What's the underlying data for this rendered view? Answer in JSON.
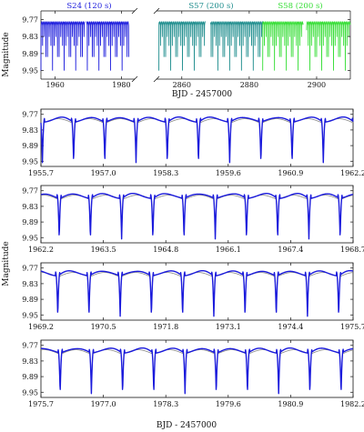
{
  "chart_data": [
    {
      "type": "line",
      "panel": "overview",
      "xlabel": "BJD - 2457000",
      "ylabel": "Magnitude",
      "ylim": [
        9.98,
        9.74
      ],
      "yticks": [
        "9.77",
        "9.83",
        "9.89",
        "9.95"
      ],
      "broken_x_axis": true,
      "segments": [
        {
          "xlim": [
            1955.7,
            1984.0
          ],
          "xticks": [
            "1960",
            "1980"
          ]
        },
        {
          "xlim": [
            2852.5,
            2910.0
          ],
          "xticks": [
            "2860",
            "2880",
            "2900"
          ]
        }
      ],
      "series": [
        {
          "name": "S24 (120 s)",
          "color": "#1a1adc",
          "x_range": [
            1955.7,
            1982.2
          ],
          "gap": [
            1969.0,
            1969.4
          ]
        },
        {
          "name": "S57 (200 s)",
          "color": "#1c8c8c",
          "x_range": [
            2853.2,
            2884.0
          ],
          "gap": [
            2867.0,
            2868.5
          ]
        },
        {
          "name": "S58 (200 s)",
          "color": "#33dd33",
          "x_range": [
            2884.0,
            2910.0
          ],
          "gap": [
            2896.0,
            2897.0
          ]
        }
      ],
      "period_days": 0.5,
      "min_level": 9.95,
      "max_level": 9.78
    },
    {
      "type": "line",
      "panel": "zoom-1",
      "xlim": [
        1955.7,
        1962.2
      ],
      "xticks": [
        "1955.7",
        "1957.0",
        "1958.3",
        "1959.6",
        "1960.9",
        "1962.2"
      ],
      "ylim": [
        9.97,
        9.75
      ],
      "yticks": [
        "9.77",
        "9.83",
        "9.89",
        "9.95"
      ],
      "series": [
        {
          "name": "",
          "color": "#1a1adc"
        },
        {
          "name": "",
          "color": "#888888"
        }
      ],
      "period_days": 0.65,
      "first_min": 1956.38
    },
    {
      "type": "line",
      "panel": "zoom-2",
      "xlim": [
        1962.2,
        1968.7
      ],
      "xticks": [
        "1962.2",
        "1963.5",
        "1964.8",
        "1966.1",
        "1967.4",
        "1968.7"
      ],
      "ylim": [
        9.97,
        9.75
      ],
      "yticks": [
        "9.77",
        "9.83",
        "9.89",
        "9.95"
      ],
      "series": [
        {
          "name": "",
          "color": "#1a1adc"
        },
        {
          "name": "",
          "color": "#888888"
        }
      ],
      "period_days": 0.65,
      "first_min": 1962.58
    },
    {
      "type": "line",
      "panel": "zoom-3",
      "xlim": [
        1969.2,
        1975.7
      ],
      "xticks": [
        "1969.2",
        "1970.5",
        "1971.8",
        "1973.1",
        "1974.4",
        "1975.7"
      ],
      "ylim": [
        9.97,
        9.75
      ],
      "yticks": [
        "9.77",
        "9.83",
        "9.89",
        "9.95"
      ],
      "series": [
        {
          "name": "",
          "color": "#1a1adc"
        },
        {
          "name": "",
          "color": "#888888"
        }
      ],
      "period_days": 0.65,
      "first_min": 1969.55
    },
    {
      "type": "line",
      "panel": "zoom-4",
      "xlabel": "BJD - 2457000",
      "xlim": [
        1975.7,
        1982.2
      ],
      "xticks": [
        "1975.7",
        "1977.0",
        "1978.3",
        "1979.6",
        "1980.9",
        "1982.2"
      ],
      "ylim": [
        9.97,
        9.75
      ],
      "yticks": [
        "9.77",
        "9.83",
        "9.89",
        "9.95"
      ],
      "series": [
        {
          "name": "",
          "color": "#1a1adc"
        },
        {
          "name": "",
          "color": "#888888"
        }
      ],
      "period_days": 0.65,
      "first_min": 1976.1
    }
  ],
  "shared": {
    "ylabel_lower": "Magnitude"
  }
}
